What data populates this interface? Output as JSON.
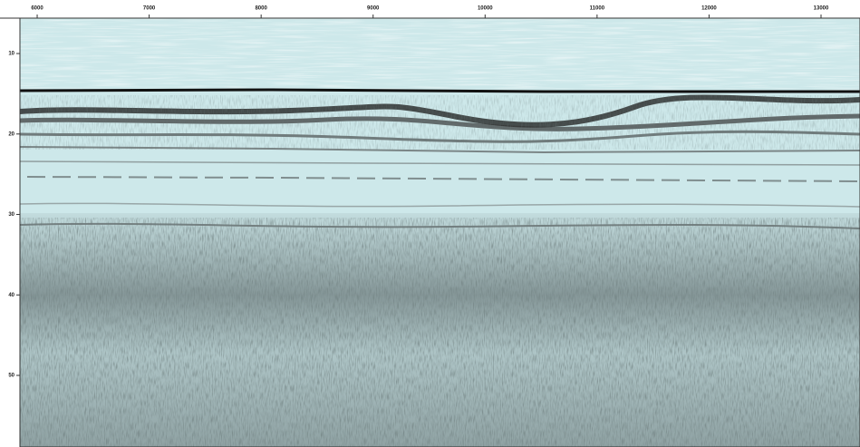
{
  "chart_data": {
    "type": "seismic-section",
    "xlim": [
      5846,
      13348
    ],
    "xticks": [
      6000,
      7000,
      8000,
      9000,
      10000,
      11000,
      12000,
      13000
    ],
    "ylim": [
      5.6,
      58.9
    ],
    "yticks": [
      10,
      20,
      30,
      40,
      50
    ]
  }
}
